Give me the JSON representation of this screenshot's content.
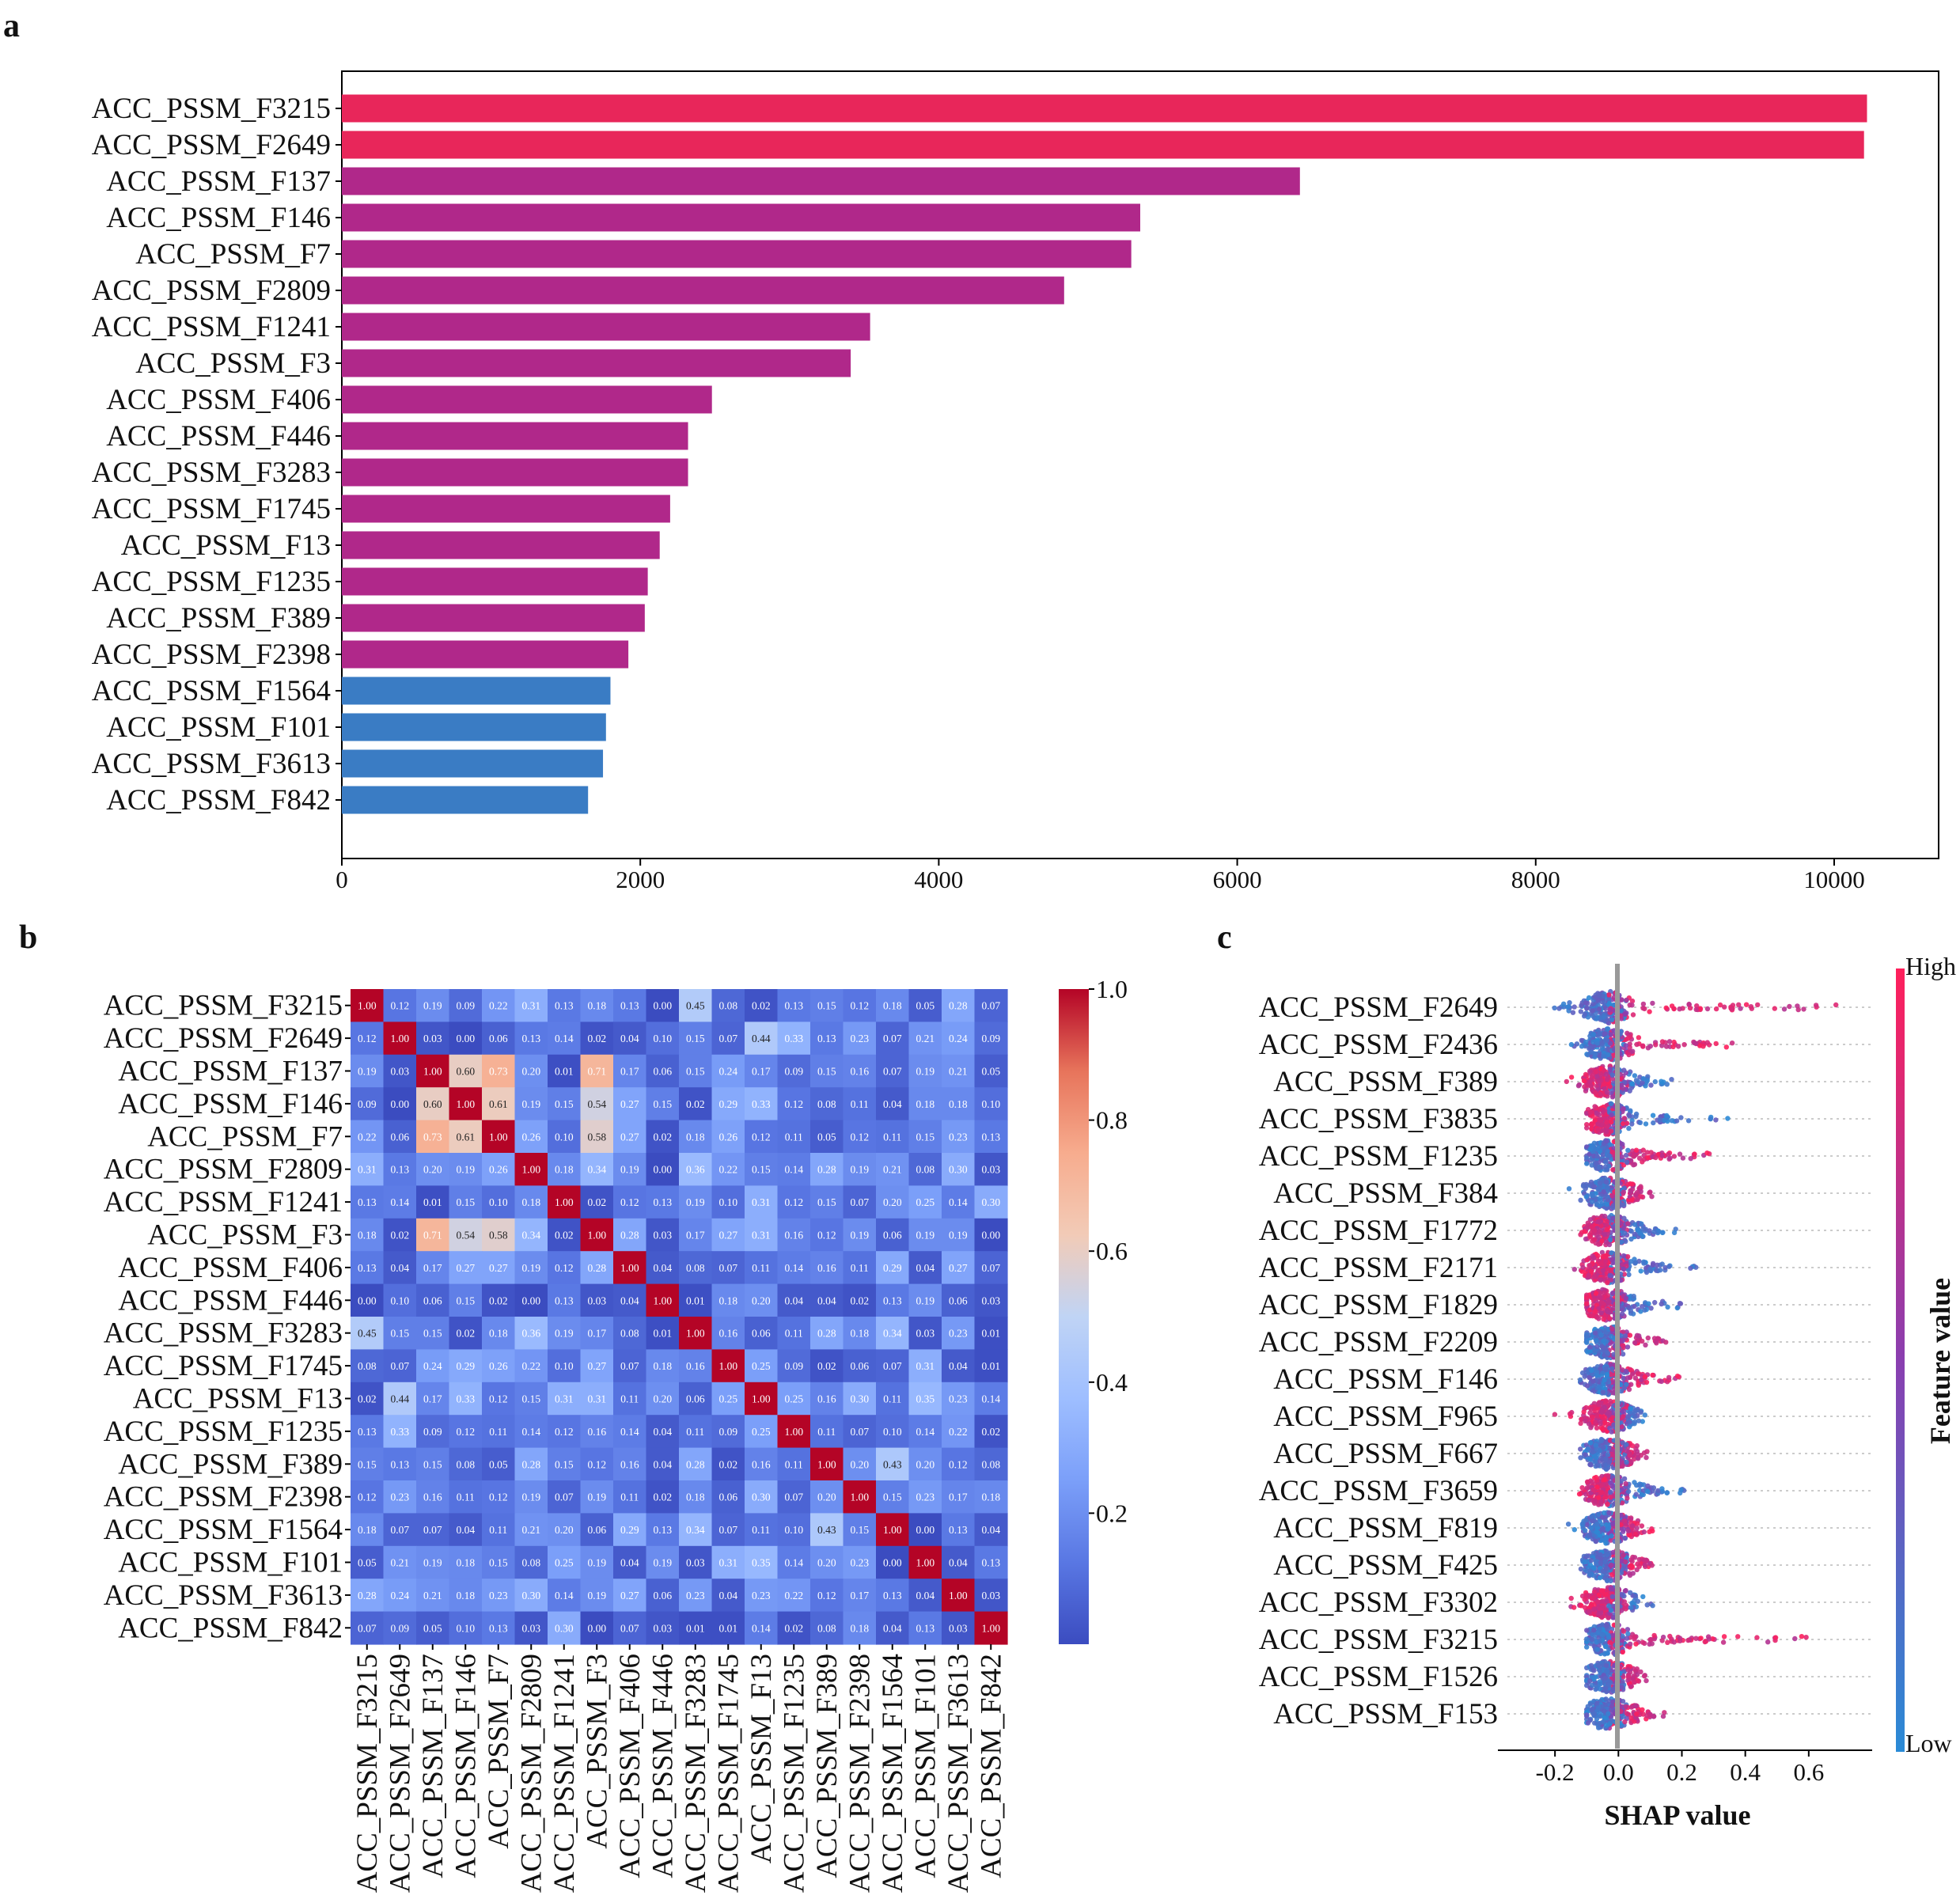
{
  "panel_labels": {
    "a": "a",
    "b": "b",
    "c": "c"
  },
  "chart_data": [
    {
      "type": "bar",
      "panel": "a",
      "orientation": "horizontal",
      "categories": [
        "ACC_PSSM_F3215",
        "ACC_PSSM_F2649",
        "ACC_PSSM_F137",
        "ACC_PSSM_F146",
        "ACC_PSSM_F7",
        "ACC_PSSM_F2809",
        "ACC_PSSM_F1241",
        "ACC_PSSM_F3",
        "ACC_PSSM_F406",
        "ACC_PSSM_F446",
        "ACC_PSSM_F3283",
        "ACC_PSSM_F1745",
        "ACC_PSSM_F13",
        "ACC_PSSM_F1235",
        "ACC_PSSM_F389",
        "ACC_PSSM_F2398",
        "ACC_PSSM_F1564",
        "ACC_PSSM_F101",
        "ACC_PSSM_F3613",
        "ACC_PSSM_F842"
      ],
      "values": [
        10220,
        10200,
        6420,
        5350,
        5290,
        4840,
        3540,
        3410,
        2480,
        2320,
        2320,
        2200,
        2130,
        2050,
        2030,
        1920,
        1800,
        1770,
        1750,
        1650
      ],
      "bar_colors": [
        "#e8265a",
        "#e8265a",
        "#b0288a",
        "#b0288a",
        "#b0288a",
        "#b0288a",
        "#b0288a",
        "#b0288a",
        "#b0288a",
        "#b0288a",
        "#b0288a",
        "#b0288a",
        "#b0288a",
        "#b0288a",
        "#b0288a",
        "#b0288a",
        "#3a7cc4",
        "#3a7cc4",
        "#3a7cc4",
        "#3a7cc4"
      ],
      "xlim": [
        0,
        10700
      ],
      "xticks": [
        0,
        2000,
        4000,
        6000,
        8000,
        10000
      ],
      "xtick_labels": [
        "0",
        "2000",
        "4000",
        "6000",
        "8000",
        "10000"
      ],
      "title": "",
      "xlabel": "",
      "ylabel": ""
    },
    {
      "type": "heatmap",
      "panel": "b",
      "labels": [
        "ACC_PSSM_F3215",
        "ACC_PSSM_F2649",
        "ACC_PSSM_F137",
        "ACC_PSSM_F146",
        "ACC_PSSM_F7",
        "ACC_PSSM_F2809",
        "ACC_PSSM_F1241",
        "ACC_PSSM_F3",
        "ACC_PSSM_F406",
        "ACC_PSSM_F446",
        "ACC_PSSM_F3283",
        "ACC_PSSM_F1745",
        "ACC_PSSM_F13",
        "ACC_PSSM_F1235",
        "ACC_PSSM_F389",
        "ACC_PSSM_F2398",
        "ACC_PSSM_F1564",
        "ACC_PSSM_F101",
        "ACC_PSSM_F3613",
        "ACC_PSSM_F842"
      ],
      "matrix": [
        [
          1.0,
          0.12,
          0.19,
          0.09,
          0.22,
          0.31,
          0.13,
          0.18,
          0.13,
          0.0,
          0.45,
          0.08,
          0.02,
          0.13,
          0.15,
          0.12,
          0.18,
          0.05,
          0.28,
          0.07
        ],
        [
          0.12,
          1.0,
          0.03,
          0.0,
          0.06,
          0.13,
          0.14,
          0.02,
          0.04,
          0.1,
          0.15,
          0.07,
          0.44,
          0.33,
          0.13,
          0.23,
          0.07,
          0.21,
          0.24,
          0.09
        ],
        [
          0.19,
          0.03,
          1.0,
          0.6,
          0.73,
          0.2,
          0.01,
          0.71,
          0.17,
          0.06,
          0.15,
          0.24,
          0.17,
          0.09,
          0.15,
          0.16,
          0.07,
          0.19,
          0.21,
          0.05
        ],
        [
          0.09,
          0.0,
          0.6,
          1.0,
          0.61,
          0.19,
          0.15,
          0.54,
          0.27,
          0.15,
          0.02,
          0.29,
          0.33,
          0.12,
          0.08,
          0.11,
          0.04,
          0.18,
          0.18,
          0.1
        ],
        [
          0.22,
          0.06,
          0.73,
          0.61,
          1.0,
          0.26,
          0.1,
          0.58,
          0.27,
          0.02,
          0.18,
          0.26,
          0.12,
          0.11,
          0.05,
          0.12,
          0.11,
          0.15,
          0.23,
          0.13
        ],
        [
          0.31,
          0.13,
          0.2,
          0.19,
          0.26,
          1.0,
          0.18,
          0.34,
          0.19,
          0.0,
          0.36,
          0.22,
          0.15,
          0.14,
          0.28,
          0.19,
          0.21,
          0.08,
          0.3,
          0.03
        ],
        [
          0.13,
          0.14,
          0.01,
          0.15,
          0.1,
          0.18,
          1.0,
          0.02,
          0.12,
          0.13,
          0.19,
          0.1,
          0.31,
          0.12,
          0.15,
          0.07,
          0.2,
          0.25,
          0.14,
          0.3
        ],
        [
          0.18,
          0.02,
          0.71,
          0.54,
          0.58,
          0.34,
          0.02,
          1.0,
          0.28,
          0.03,
          0.17,
          0.27,
          0.31,
          0.16,
          0.12,
          0.19,
          0.06,
          0.19,
          0.19,
          0.0
        ],
        [
          0.13,
          0.04,
          0.17,
          0.27,
          0.27,
          0.19,
          0.12,
          0.28,
          1.0,
          0.04,
          0.08,
          0.07,
          0.11,
          0.14,
          0.16,
          0.11,
          0.29,
          0.04,
          0.27,
          0.07
        ],
        [
          0.0,
          0.1,
          0.06,
          0.15,
          0.02,
          0.0,
          0.13,
          0.03,
          0.04,
          1.0,
          0.01,
          0.18,
          0.2,
          0.04,
          0.04,
          0.02,
          0.13,
          0.19,
          0.06,
          0.03
        ],
        [
          0.45,
          0.15,
          0.15,
          0.02,
          0.18,
          0.36,
          0.19,
          0.17,
          0.08,
          0.01,
          1.0,
          0.16,
          0.06,
          0.11,
          0.28,
          0.18,
          0.34,
          0.03,
          0.23,
          0.01
        ],
        [
          0.08,
          0.07,
          0.24,
          0.29,
          0.26,
          0.22,
          0.1,
          0.27,
          0.07,
          0.18,
          0.16,
          1.0,
          0.25,
          0.09,
          0.02,
          0.06,
          0.07,
          0.31,
          0.04,
          0.01
        ],
        [
          0.02,
          0.44,
          0.17,
          0.33,
          0.12,
          0.15,
          0.31,
          0.31,
          0.11,
          0.2,
          0.06,
          0.25,
          1.0,
          0.25,
          0.16,
          0.3,
          0.11,
          0.35,
          0.23,
          0.14
        ],
        [
          0.13,
          0.33,
          0.09,
          0.12,
          0.11,
          0.14,
          0.12,
          0.16,
          0.14,
          0.04,
          0.11,
          0.09,
          0.25,
          1.0,
          0.11,
          0.07,
          0.1,
          0.14,
          0.22,
          0.02
        ],
        [
          0.15,
          0.13,
          0.15,
          0.08,
          0.05,
          0.28,
          0.15,
          0.12,
          0.16,
          0.04,
          0.28,
          0.02,
          0.16,
          0.11,
          1.0,
          0.2,
          0.43,
          0.2,
          0.12,
          0.08
        ],
        [
          0.12,
          0.23,
          0.16,
          0.11,
          0.12,
          0.19,
          0.07,
          0.19,
          0.11,
          0.02,
          0.18,
          0.06,
          0.3,
          0.07,
          0.2,
          1.0,
          0.15,
          0.23,
          0.17,
          0.18
        ],
        [
          0.18,
          0.07,
          0.07,
          0.04,
          0.11,
          0.21,
          0.2,
          0.06,
          0.29,
          0.13,
          0.34,
          0.07,
          0.11,
          0.1,
          0.43,
          0.15,
          1.0,
          0.0,
          0.13,
          0.04
        ],
        [
          0.05,
          0.21,
          0.19,
          0.18,
          0.15,
          0.08,
          0.25,
          0.19,
          0.04,
          0.19,
          0.03,
          0.31,
          0.35,
          0.14,
          0.2,
          0.23,
          0.0,
          1.0,
          0.04,
          0.13
        ],
        [
          0.28,
          0.24,
          0.21,
          0.18,
          0.23,
          0.3,
          0.14,
          0.19,
          0.27,
          0.06,
          0.23,
          0.04,
          0.23,
          0.22,
          0.12,
          0.17,
          0.13,
          0.04,
          1.0,
          0.03
        ],
        [
          0.07,
          0.09,
          0.05,
          0.1,
          0.13,
          0.03,
          0.3,
          0.0,
          0.07,
          0.03,
          0.01,
          0.01,
          0.14,
          0.02,
          0.08,
          0.18,
          0.04,
          0.13,
          0.03,
          1.0
        ]
      ],
      "colormap": "coolwarm",
      "colorbar": {
        "ticks": [
          0.2,
          0.4,
          0.6,
          0.8,
          1.0
        ],
        "tick_labels": [
          "0.2",
          "0.4",
          "0.6",
          "0.8",
          "1.0"
        ],
        "range": [
          0.0,
          1.0
        ]
      }
    },
    {
      "type": "scatter",
      "subtype": "shap-beeswarm",
      "panel": "c",
      "features": [
        "ACC_PSSM_F2649",
        "ACC_PSSM_F2436",
        "ACC_PSSM_F389",
        "ACC_PSSM_F3835",
        "ACC_PSSM_F1235",
        "ACC_PSSM_F384",
        "ACC_PSSM_F1772",
        "ACC_PSSM_F2171",
        "ACC_PSSM_F1829",
        "ACC_PSSM_F2209",
        "ACC_PSSM_F146",
        "ACC_PSSM_F965",
        "ACC_PSSM_F667",
        "ACC_PSSM_F3659",
        "ACC_PSSM_F819",
        "ACC_PSSM_F425",
        "ACC_PSSM_F3302",
        "ACC_PSSM_F3215",
        "ACC_PSSM_F1526",
        "ACC_PSSM_F153"
      ],
      "shap_range": [
        [
          -0.33,
          0.74
        ],
        [
          -0.18,
          0.42
        ],
        [
          -0.19,
          0.22
        ],
        [
          -0.1,
          0.42
        ],
        [
          -0.1,
          0.3
        ],
        [
          -0.17,
          0.12
        ],
        [
          -0.15,
          0.2
        ],
        [
          -0.14,
          0.26
        ],
        [
          -0.1,
          0.23
        ],
        [
          -0.1,
          0.17
        ],
        [
          -0.12,
          0.2
        ],
        [
          -0.25,
          0.1
        ],
        [
          -0.12,
          0.1
        ],
        [
          -0.15,
          0.22
        ],
        [
          -0.17,
          0.12
        ],
        [
          -0.12,
          0.12
        ],
        [
          -0.2,
          0.14
        ],
        [
          -0.1,
          0.62
        ],
        [
          -0.1,
          0.1
        ],
        [
          -0.1,
          0.16
        ]
      ],
      "high_side": [
        "right",
        "right",
        "left",
        "left",
        "right",
        "right",
        "left",
        "left",
        "left",
        "right",
        "right",
        "left",
        "right",
        "left",
        "right",
        "right",
        "left",
        "right",
        "right",
        "right"
      ],
      "xlim": [
        -0.38,
        0.8
      ],
      "xticks": [
        -0.2,
        0.0,
        0.2,
        0.4,
        0.6
      ],
      "xtick_labels": [
        "-0.2",
        "0.0",
        "0.2",
        "0.4",
        "0.6"
      ],
      "xlabel": "SHAP value",
      "colorbar": {
        "label": "Feature value",
        "high": "High",
        "low": "Low",
        "color_low": "#2a8bd6",
        "color_high": "#ff1f5b"
      }
    }
  ]
}
